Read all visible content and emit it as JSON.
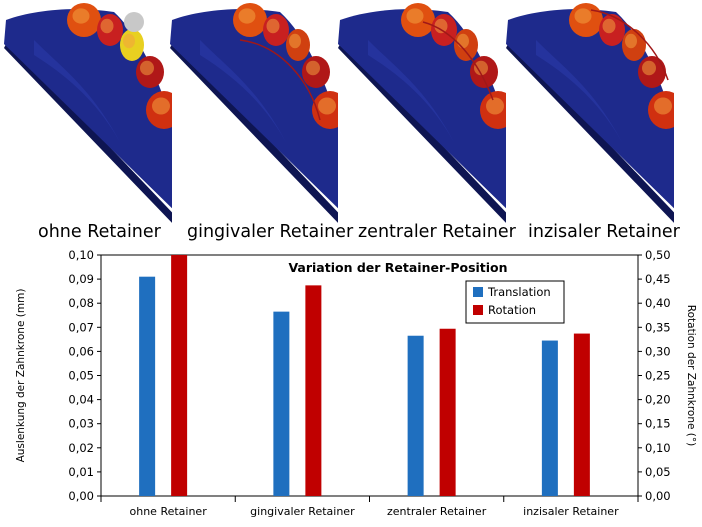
{
  "panels": [
    {
      "label": "ohne Retainer"
    },
    {
      "label": "gingivaler Retainer"
    },
    {
      "label": "zentraler Retainer"
    },
    {
      "label": "inzisaler Retainer"
    }
  ],
  "colors": {
    "translation": "#1f6fbf",
    "rotation": "#c00000",
    "jaw": "#1e2a8c"
  },
  "chart_data": {
    "type": "bar",
    "title": "Variation der Retainer-Position",
    "categories": [
      "ohne Retainer",
      "gingivaler Retainer",
      "zentraler Retainer",
      "inzisaler Retainer"
    ],
    "series": [
      {
        "name": "Translation",
        "axis": "left",
        "values": [
          0.091,
          0.0765,
          0.0665,
          0.0645
        ]
      },
      {
        "name": "Rotation",
        "axis": "right",
        "values": [
          0.5,
          0.437,
          0.347,
          0.337
        ]
      }
    ],
    "ylabel_left": "Auslenkung der Zahnkrone (mm)",
    "ylabel_right": "Rotation der Zahnkrone (°)",
    "ylim_left": [
      0,
      0.1
    ],
    "ylim_right": [
      0,
      0.5
    ],
    "yticks_left": [
      "0,00",
      "0,01",
      "0,02",
      "0,03",
      "0,04",
      "0,05",
      "0,06",
      "0,07",
      "0,08",
      "0,09",
      "0,10"
    ],
    "yticks_right": [
      "0,00",
      "0,05",
      "0,10",
      "0,15",
      "0,20",
      "0,25",
      "0,30",
      "0,35",
      "0,40",
      "0,45",
      "0,50"
    ],
    "legend_position": "top-right",
    "grid": false
  }
}
